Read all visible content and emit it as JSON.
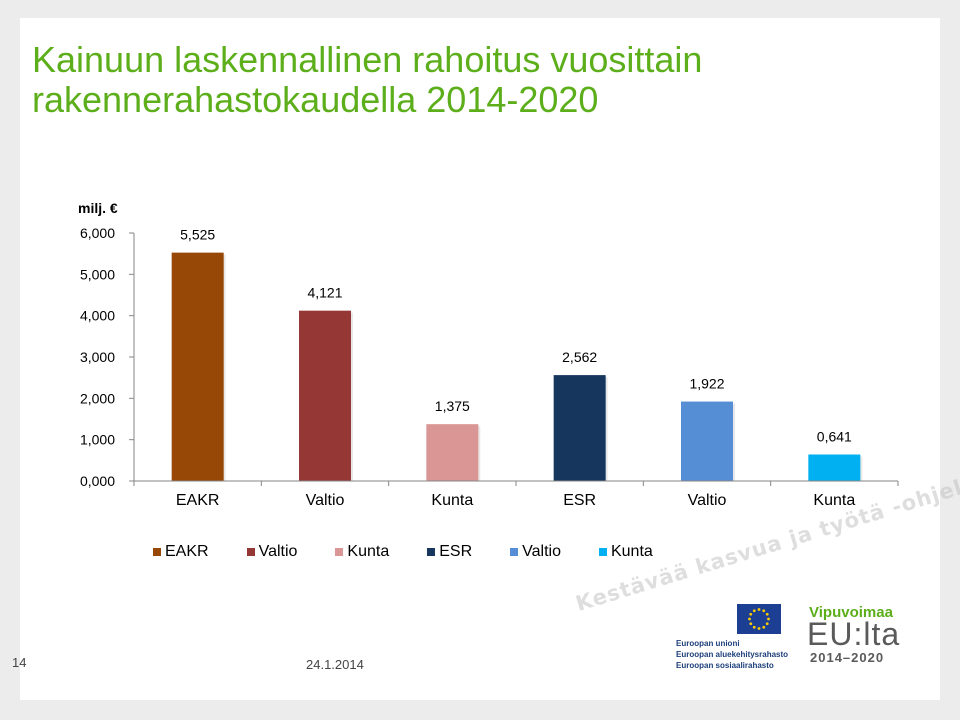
{
  "title_lines": [
    "Kainuun laskennallinen rahoitus vuosittain",
    "rakennerahastokaudella 2014-2020"
  ],
  "chart_data": {
    "type": "bar",
    "unit_label": "milj. €",
    "categories": [
      "EAKR",
      "Valtio",
      "Kunta",
      "ESR",
      "Valtio",
      "Kunta"
    ],
    "values": [
      5.525,
      4.121,
      1.375,
      2.562,
      1.922,
      0.641
    ],
    "data_labels": [
      "5,525",
      "4,121",
      "1,375",
      "2,562",
      "1,922",
      "0,641"
    ],
    "colors": [
      "#974706",
      "#953735",
      "#d99694",
      "#17365d",
      "#558ed5",
      "#00b0f0"
    ],
    "ylim": [
      0,
      6
    ],
    "yticks": [
      0,
      1,
      2,
      3,
      4,
      5,
      6
    ],
    "ytick_labels": [
      "0,000",
      "1,000",
      "2,000",
      "3,000",
      "4,000",
      "5,000",
      "6,000"
    ],
    "legend": [
      "EAKR",
      "Valtio",
      "Kunta",
      "ESR",
      "Valtio",
      "Kunta"
    ],
    "legend_position": "bottom",
    "grid": false
  },
  "footer": {
    "page_number": "14",
    "date": "24.1.2014"
  },
  "watermark": "Kestävää kasvua ja työtä -ohjelma",
  "logos": {
    "eu_lines": [
      "Euroopan unioni",
      "Euroopan aluekehitysrahasto",
      "Euroopan sosiaalirahasto"
    ],
    "program_title": "Vipuvoimaa",
    "program_name": "EU:lta",
    "program_years": "2014–2020"
  }
}
